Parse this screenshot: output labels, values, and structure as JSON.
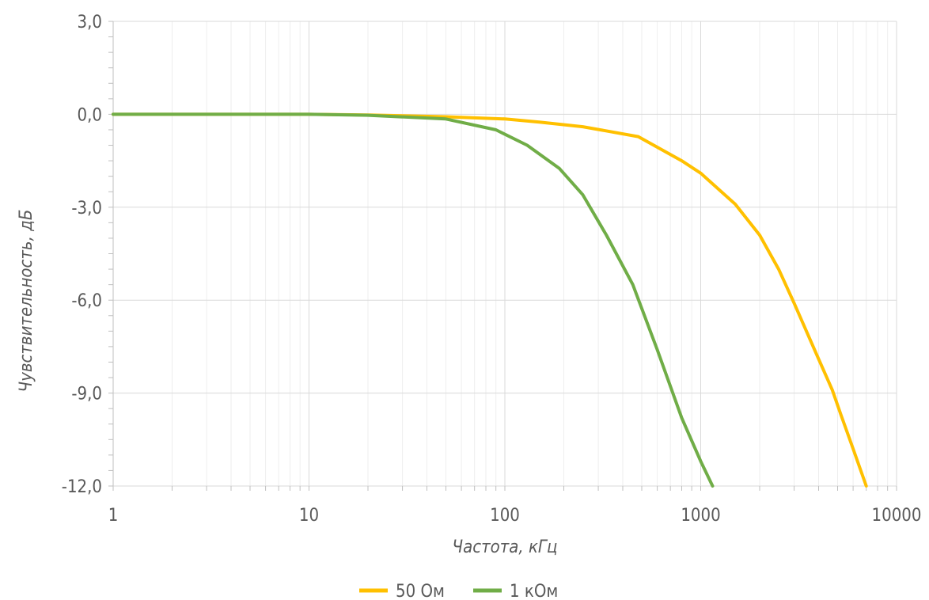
{
  "chart_data": {
    "type": "line",
    "xlabel": "Частота, кГц",
    "ylabel": "Чувствительность, дБ",
    "x_scale": "log",
    "xlim": [
      1,
      10000
    ],
    "ylim": [
      -12,
      3
    ],
    "x_ticks": [
      1,
      10,
      100,
      1000,
      10000
    ],
    "x_tick_labels": [
      "1",
      "10",
      "100",
      "1000",
      "10000"
    ],
    "y_ticks": [
      3,
      0,
      -3,
      -6,
      -9,
      -12
    ],
    "y_tick_labels": [
      "3,0",
      "0,0",
      "-3,0",
      "-6,0",
      "-9,0",
      "-12,0"
    ],
    "grid": true,
    "legend_position": "bottom",
    "series": [
      {
        "name": "50 Ом",
        "color": "#ffc000",
        "x": [
          1,
          10,
          20,
          50,
          100,
          150,
          250,
          480,
          800,
          1000,
          1500,
          2000,
          2500,
          3000,
          4000,
          4700,
          5200,
          6000,
          7000
        ],
        "y": [
          0,
          0,
          -0.02,
          -0.08,
          -0.15,
          -0.25,
          -0.4,
          -0.72,
          -1.5,
          -1.9,
          -2.9,
          -3.9,
          -5.0,
          -6.1,
          -7.9,
          -8.9,
          -9.7,
          -10.8,
          -12.0
        ]
      },
      {
        "name": "1 кОм",
        "color": "#70ad47",
        "x": [
          1,
          10,
          20,
          50,
          90,
          130,
          190,
          250,
          330,
          450,
          600,
          800,
          1000,
          1150
        ],
        "y": [
          0,
          0,
          -0.03,
          -0.15,
          -0.5,
          -1.0,
          -1.75,
          -2.6,
          -3.9,
          -5.5,
          -7.6,
          -9.8,
          -11.2,
          -12.0
        ]
      }
    ]
  }
}
